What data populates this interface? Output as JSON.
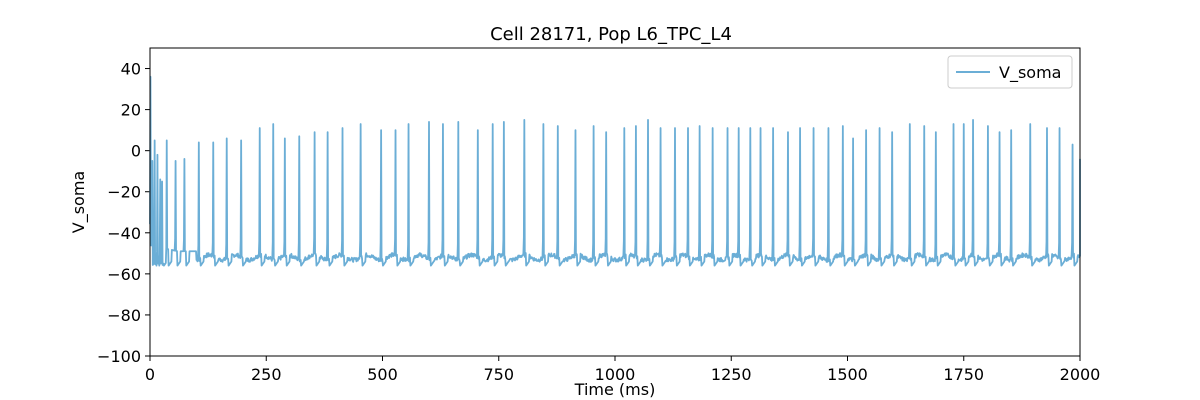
{
  "chart_data": {
    "type": "line",
    "title": "Cell 28171, Pop L6_TPC_L4",
    "xlabel": "Time (ms)",
    "ylabel": "V_soma",
    "xlim": [
      0,
      2000
    ],
    "ylim": [
      -100,
      50
    ],
    "x_ticks": [
      0,
      250,
      500,
      750,
      1000,
      1250,
      1500,
      1750,
      2000
    ],
    "y_ticks": [
      -100,
      -80,
      -60,
      -40,
      -20,
      0,
      20,
      40
    ],
    "x_tick_labels": [
      "0",
      "250",
      "500",
      "750",
      "1000",
      "1250",
      "1500",
      "1750",
      "2000"
    ],
    "y_tick_labels": [
      "−100",
      "−80",
      "−60",
      "−40",
      "−20",
      "0",
      "20",
      "40"
    ],
    "legend": {
      "position": "top-right",
      "entries": [
        "V_soma"
      ]
    },
    "grid": false,
    "series": [
      {
        "name": "V_soma",
        "color": "#6baed6",
        "spike_times": [
          1,
          5,
          10,
          16,
          22,
          26,
          36,
          55,
          74,
          105,
          136,
          165,
          196,
          236,
          265,
          290,
          321,
          354,
          382,
          414,
          453,
          497,
          528,
          556,
          600,
          630,
          663,
          705,
          737,
          761,
          805,
          846,
          877,
          915,
          954,
          981,
          1020,
          1045,
          1071,
          1098,
          1129,
          1157,
          1182,
          1210,
          1242,
          1266,
          1291,
          1313,
          1340,
          1372,
          1398,
          1427,
          1459,
          1490,
          1512,
          1540,
          1569,
          1596,
          1634,
          1665,
          1690,
          1728,
          1750,
          1770,
          1802,
          1827,
          1852,
          1893,
          1929,
          1956,
          1984
        ],
        "spike_peaks": [
          36,
          -5,
          5,
          -2,
          -14,
          -15,
          5,
          -5,
          -4,
          4,
          4,
          6,
          5,
          11,
          13,
          6,
          7,
          9,
          9,
          11,
          13,
          10,
          10,
          13,
          14,
          13,
          14,
          10,
          13,
          14,
          15,
          13,
          12,
          10,
          12,
          9,
          11,
          12,
          15,
          11,
          11,
          11,
          12,
          11,
          11,
          11,
          11,
          11,
          11,
          9,
          11,
          11,
          11,
          12,
          6,
          10,
          11,
          9,
          13,
          12,
          9,
          13,
          13,
          15,
          12,
          9,
          10,
          13,
          11,
          11,
          3
        ],
        "baseline": -52,
        "end_value": -4
      }
    ]
  }
}
